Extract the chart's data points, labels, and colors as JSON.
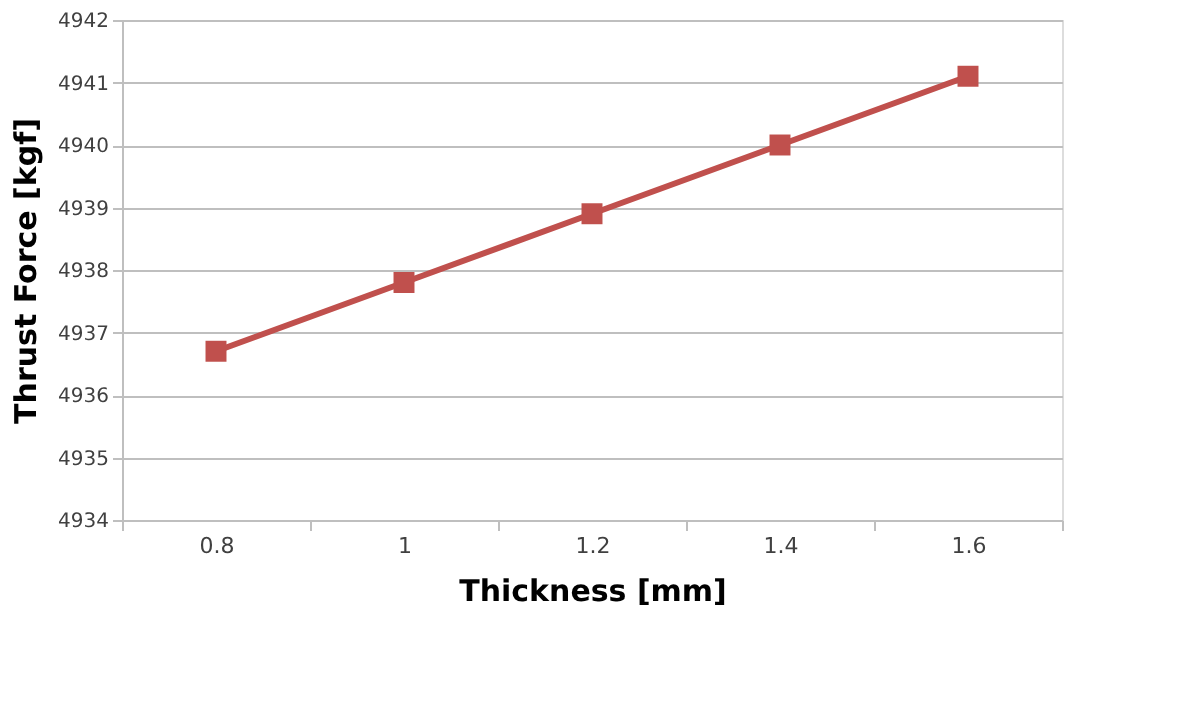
{
  "chart_data": {
    "type": "line",
    "xlabel": "Thickness [mm]",
    "ylabel": "Thrust Force [kgf]",
    "categories": [
      "0.8",
      "1",
      "1.2",
      "1.4",
      "1.6"
    ],
    "series": [
      {
        "color": "#c0504d",
        "values": [
          4936.7,
          4937.8,
          4938.9,
          4940.0,
          4941.1
        ]
      }
    ],
    "ylim": [
      4934,
      4942
    ],
    "yticks": [
      4934,
      4935,
      4936,
      4937,
      4938,
      4939,
      4940,
      4941,
      4942
    ],
    "grid": "y",
    "marker": "square",
    "line_style": "solid",
    "legend": false
  }
}
